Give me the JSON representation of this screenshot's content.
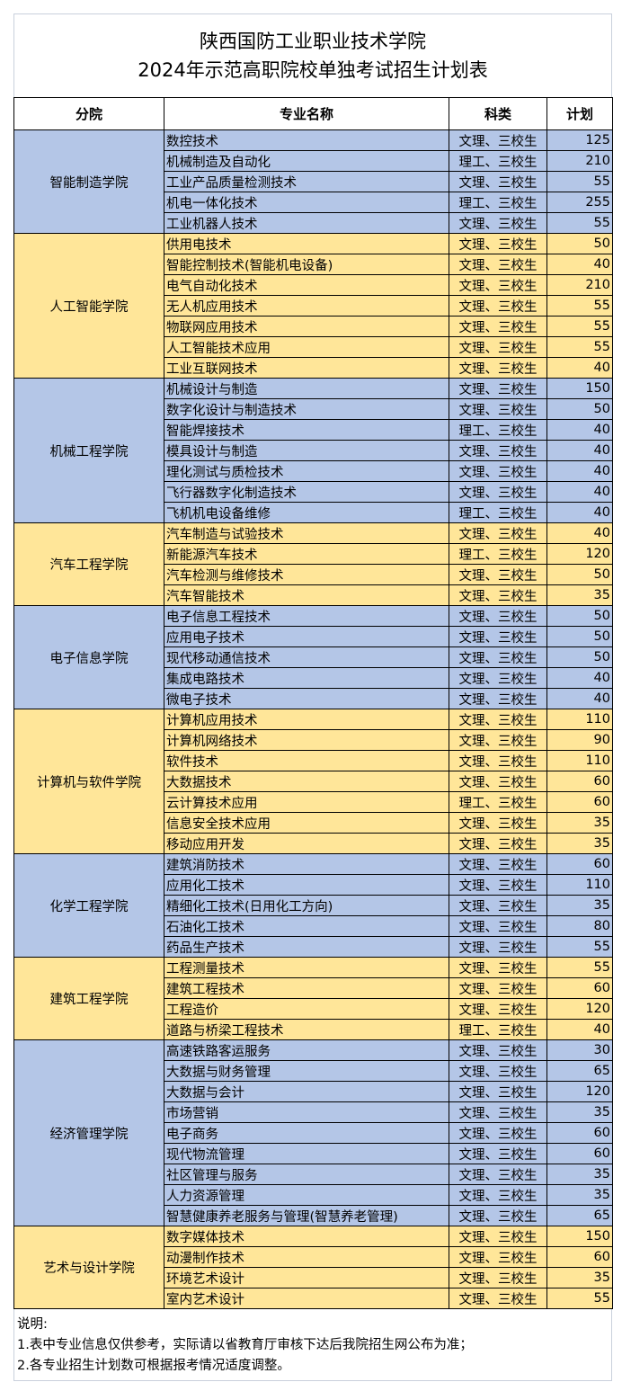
{
  "title": {
    "line1": "陕西国防工业职业技术学院",
    "line2": "2024年示范高职院校单独考试招生计划表"
  },
  "columns": [
    "分院",
    "专业名称",
    "科类",
    "计划"
  ],
  "colors": {
    "blue": "#b4c6e7",
    "yellow": "#ffe699"
  },
  "departments": [
    {
      "name": "智能制造学院",
      "color": "blue",
      "majors": [
        [
          "数控技术",
          "文理、三校生",
          "125"
        ],
        [
          "机械制造及自动化",
          "理工、三校生",
          "210"
        ],
        [
          "工业产品质量检测技术",
          "文理、三校生",
          "55"
        ],
        [
          "机电一体化技术",
          "理工、三校生",
          "255"
        ],
        [
          "工业机器人技术",
          "文理、三校生",
          "55"
        ]
      ]
    },
    {
      "name": "人工智能学院",
      "color": "yellow",
      "majors": [
        [
          "供用电技术",
          "文理、三校生",
          "50"
        ],
        [
          "智能控制技术(智能机电设备)",
          "文理、三校生",
          "40"
        ],
        [
          "电气自动化技术",
          "文理、三校生",
          "210"
        ],
        [
          "无人机应用技术",
          "文理、三校生",
          "55"
        ],
        [
          "物联网应用技术",
          "文理、三校生",
          "55"
        ],
        [
          "人工智能技术应用",
          "文理、三校生",
          "55"
        ],
        [
          "工业互联网技术",
          "文理、三校生",
          "40"
        ]
      ]
    },
    {
      "name": "机械工程学院",
      "color": "blue",
      "majors": [
        [
          "机械设计与制造",
          "文理、三校生",
          "150"
        ],
        [
          "数字化设计与制造技术",
          "文理、三校生",
          "50"
        ],
        [
          "智能焊接技术",
          "理工、三校生",
          "40"
        ],
        [
          "模具设计与制造",
          "文理、三校生",
          "40"
        ],
        [
          "理化测试与质检技术",
          "文理、三校生",
          "40"
        ],
        [
          "飞行器数字化制造技术",
          "文理、三校生",
          "40"
        ],
        [
          "飞机机电设备维修",
          "理工、三校生",
          "40"
        ]
      ]
    },
    {
      "name": "汽车工程学院",
      "color": "yellow",
      "majors": [
        [
          "汽车制造与试验技术",
          "文理、三校生",
          "40"
        ],
        [
          "新能源汽车技术",
          "理工、三校生",
          "120"
        ],
        [
          "汽车检测与维修技术",
          "文理、三校生",
          "50"
        ],
        [
          "汽车智能技术",
          "文理、三校生",
          "35"
        ]
      ]
    },
    {
      "name": "电子信息学院",
      "color": "blue",
      "majors": [
        [
          "电子信息工程技术",
          "文理、三校生",
          "50"
        ],
        [
          "应用电子技术",
          "文理、三校生",
          "50"
        ],
        [
          "现代移动通信技术",
          "文理、三校生",
          "50"
        ],
        [
          "集成电路技术",
          "文理、三校生",
          "40"
        ],
        [
          "微电子技术",
          "文理、三校生",
          "40"
        ]
      ]
    },
    {
      "name": "计算机与软件学院",
      "color": "yellow",
      "majors": [
        [
          "计算机应用技术",
          "文理、三校生",
          "110"
        ],
        [
          "计算机网络技术",
          "文理、三校生",
          "90"
        ],
        [
          "软件技术",
          "文理、三校生",
          "110"
        ],
        [
          "大数据技术",
          "文理、三校生",
          "60"
        ],
        [
          "云计算技术应用",
          "理工、三校生",
          "60"
        ],
        [
          "信息安全技术应用",
          "文理、三校生",
          "35"
        ],
        [
          "移动应用开发",
          "文理、三校生",
          "35"
        ]
      ]
    },
    {
      "name": "化学工程学院",
      "color": "blue",
      "majors": [
        [
          "建筑消防技术",
          "文理、三校生",
          "60"
        ],
        [
          "应用化工技术",
          "文理、三校生",
          "110"
        ],
        [
          "精细化工技术(日用化工方向)",
          "文理、三校生",
          "35"
        ],
        [
          "石油化工技术",
          "文理、三校生",
          "80"
        ],
        [
          "药品生产技术",
          "文理、三校生",
          "55"
        ]
      ]
    },
    {
      "name": "建筑工程学院",
      "color": "yellow",
      "majors": [
        [
          "工程测量技术",
          "文理、三校生",
          "55"
        ],
        [
          "建筑工程技术",
          "文理、三校生",
          "60"
        ],
        [
          "工程造价",
          "文理、三校生",
          "120"
        ],
        [
          "道路与桥梁工程技术",
          "理工、三校生",
          "40"
        ]
      ]
    },
    {
      "name": "经济管理学院",
      "color": "blue",
      "majors": [
        [
          "高速铁路客运服务",
          "文理、三校生",
          "30"
        ],
        [
          "大数据与财务管理",
          "文理、三校生",
          "65"
        ],
        [
          "大数据与会计",
          "文理、三校生",
          "120"
        ],
        [
          "市场营销",
          "文理、三校生",
          "35"
        ],
        [
          "电子商务",
          "文理、三校生",
          "60"
        ],
        [
          "现代物流管理",
          "文理、三校生",
          "60"
        ],
        [
          "社区管理与服务",
          "文理、三校生",
          "35"
        ],
        [
          "人力资源管理",
          "文理、三校生",
          "35"
        ],
        [
          "智慧健康养老服务与管理(智慧养老管理)",
          "文理、三校生",
          "65"
        ]
      ]
    },
    {
      "name": "艺术与设计学院",
      "color": "yellow",
      "majors": [
        [
          "数字媒体技术",
          "文理、三校生",
          "150"
        ],
        [
          "动漫制作技术",
          "文理、三校生",
          "60"
        ],
        [
          "环境艺术设计",
          "文理、三校生",
          "35"
        ],
        [
          "室内艺术设计",
          "文理、三校生",
          "55"
        ]
      ]
    }
  ],
  "notes": {
    "heading": "说明:",
    "items": [
      "1.表中专业信息仅供参考，实际请以省教育厅审核下达后我院招生网公布为准；",
      "2.各专业招生计划数可根据报考情况适度调整。"
    ]
  }
}
